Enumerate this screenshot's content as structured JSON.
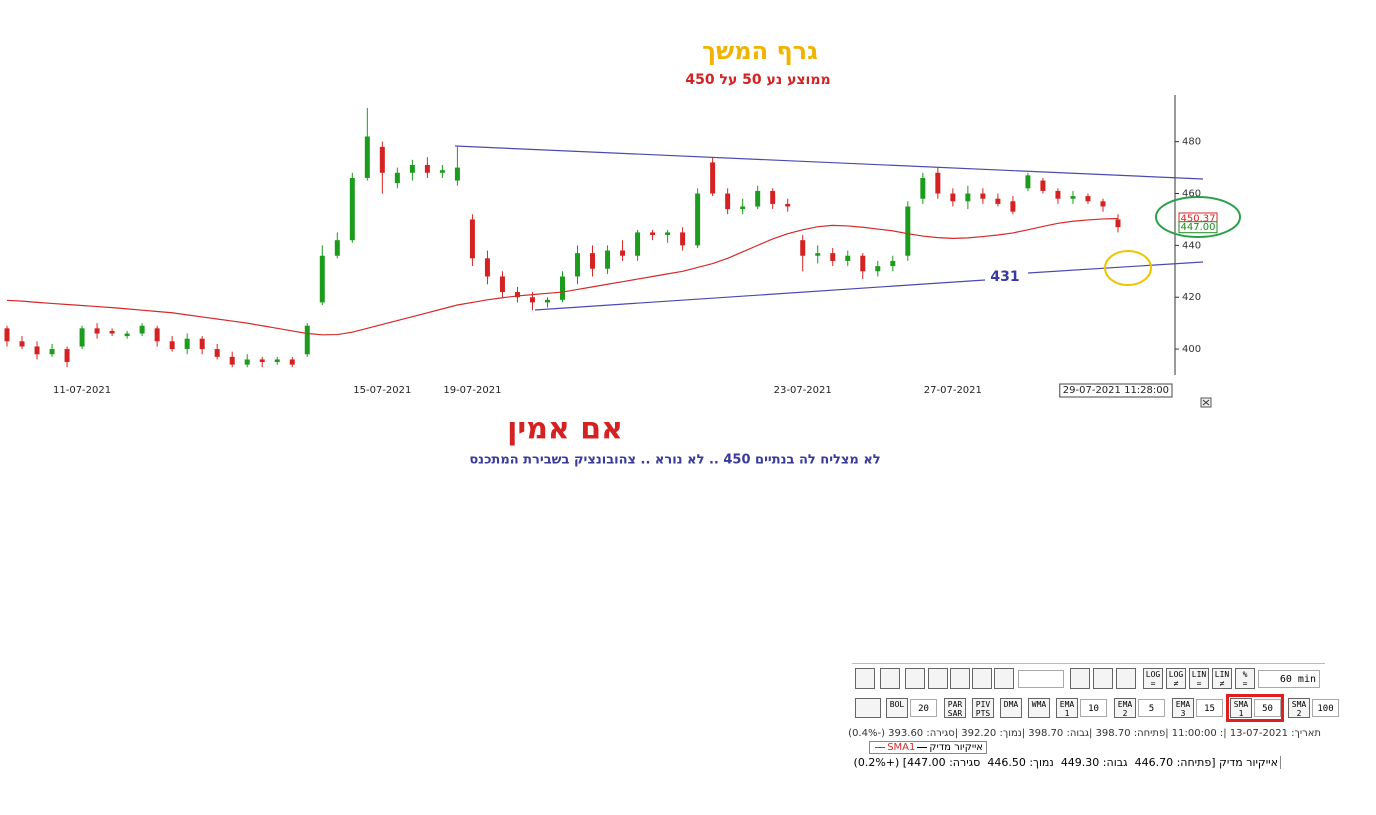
{
  "chart_data": {
    "type": "candlestick",
    "title": "גרף המשך",
    "subtitle": "ממוצע נע 50  על  450",
    "instrument": "אייקיור מדיק",
    "categories": [
      null,
      null,
      null,
      null,
      null,
      "11-07-2021",
      null,
      null,
      null,
      null,
      null,
      null,
      null,
      null,
      null,
      null,
      null,
      null,
      null,
      null,
      null,
      null,
      null,
      null,
      null,
      "15-07-2021",
      null,
      null,
      null,
      null,
      null,
      "19-07-2021",
      null,
      null,
      null,
      null,
      null,
      null,
      null,
      null,
      null,
      null,
      null,
      null,
      null,
      null,
      null,
      null,
      null,
      null,
      null,
      null,
      null,
      "23-07-2021",
      null,
      null,
      null,
      null,
      null,
      null,
      null,
      null,
      null,
      "27-07-2021",
      null,
      null,
      null,
      null,
      null,
      null,
      null,
      null,
      null,
      null,
      "29-07-2021 11:28:00"
    ],
    "open": [
      408,
      403,
      401,
      398,
      400,
      401,
      408,
      407,
      405,
      406,
      408,
      403,
      400,
      404,
      400,
      397,
      394,
      396,
      395,
      396,
      398,
      418,
      436,
      442,
      466,
      478,
      464,
      468,
      471,
      468,
      465,
      450,
      435,
      428,
      422,
      420,
      418,
      419,
      428,
      437,
      431,
      438,
      436,
      445,
      444,
      445,
      440,
      472,
      460,
      454,
      455,
      461,
      456,
      442,
      436,
      437,
      434,
      436,
      430,
      432,
      436,
      458,
      468,
      460,
      457,
      460,
      458,
      457,
      462,
      465,
      461,
      458,
      459,
      457,
      450
    ],
    "high": [
      409,
      405,
      403,
      402,
      401,
      409,
      410,
      408,
      407,
      410,
      409,
      405,
      406,
      405,
      402,
      399,
      398,
      397,
      397,
      397,
      410,
      440,
      445,
      468,
      493,
      480,
      470,
      473,
      474,
      471,
      478,
      452,
      438,
      430,
      424,
      422,
      420,
      430,
      440,
      440,
      440,
      442,
      446,
      446,
      446,
      447,
      462,
      474,
      462,
      458,
      463,
      462,
      458,
      444,
      440,
      439,
      438,
      437,
      434,
      436,
      457,
      468,
      470,
      462,
      463,
      462,
      460,
      459,
      468,
      466,
      462,
      461,
      460,
      458,
      452
    ],
    "low": [
      401,
      400,
      396,
      397,
      393,
      400,
      404,
      405,
      404,
      405,
      401,
      399,
      398,
      398,
      396,
      393,
      393,
      393,
      394,
      393,
      397,
      417,
      435,
      441,
      465,
      460,
      462,
      465,
      466,
      466,
      463,
      432,
      425,
      420,
      418,
      415,
      416,
      418,
      425,
      428,
      429,
      434,
      434,
      442,
      441,
      438,
      439,
      459,
      452,
      452,
      454,
      454,
      453,
      430,
      433,
      432,
      432,
      427,
      428,
      430,
      434,
      456,
      458,
      455,
      454,
      456,
      455,
      452,
      461,
      460,
      456,
      456,
      456,
      453,
      445
    ],
    "close": [
      403,
      401,
      398,
      400,
      395,
      408,
      406,
      406,
      406,
      409,
      403,
      400,
      404,
      400,
      397,
      394,
      396,
      395,
      396,
      394,
      409,
      436,
      442,
      466,
      482,
      468,
      468,
      471,
      468,
      469,
      470,
      435,
      428,
      422,
      420,
      418,
      419,
      428,
      437,
      431,
      438,
      436,
      445,
      444,
      445,
      440,
      460,
      460,
      454,
      455,
      461,
      456,
      455,
      436,
      437,
      434,
      436,
      430,
      432,
      434,
      455,
      466,
      460,
      457,
      460,
      458,
      456,
      453,
      467,
      461,
      458,
      459,
      457,
      455,
      447
    ],
    "up_color": "#1c9c1c",
    "down_color": "#d42222",
    "sma": {
      "name": "SMA1",
      "color": "#d42a2a",
      "values": [
        418.8,
        418.5,
        418,
        417.6,
        417.2,
        416.8,
        416.4,
        416,
        415.5,
        415,
        414.5,
        414,
        413.2,
        412.4,
        411.6,
        410.8,
        410,
        409,
        408,
        407,
        406,
        405.5,
        405.6,
        406.5,
        408,
        409.5,
        411,
        412.5,
        414,
        415.5,
        417,
        418,
        419,
        419.8,
        420.5,
        421,
        421.5,
        422,
        423,
        424,
        425,
        426,
        427,
        428,
        429,
        430,
        431.5,
        433,
        435,
        437.5,
        440,
        442.5,
        444.5,
        446,
        447.2,
        447.7,
        447.5,
        447,
        446.3,
        445.6,
        444.5,
        443.6,
        443,
        442.7,
        442.9,
        443.4,
        444,
        444.8,
        446,
        447.3,
        448.5,
        449.3,
        449.8,
        450.2,
        450.37
      ]
    },
    "ylim": [
      390,
      498
    ],
    "yticks": [
      400,
      420,
      440,
      460,
      480
    ],
    "price_tags": [
      {
        "value": 450.37,
        "color": "#d42a2a"
      },
      {
        "value": 447,
        "label": "447.00",
        "color": "#1c8a1c"
      }
    ],
    "support_label": "431"
  },
  "notes": {
    "headline": "אם אמין",
    "comment": "לא מצליח לה בנתיים  450  ..  לא נורא  ..  צהובונציק בשבירת המתכנס"
  },
  "toolbar": {
    "row1": [
      "LOG =",
      "LOG ≠",
      "LIN =",
      "LIN ≠",
      "% ="
    ],
    "interval": "60 min",
    "row2": [
      [
        "BOL",
        "20"
      ],
      [
        "PAR SAR"
      ],
      [
        "PIV PTS"
      ],
      [
        "DMA"
      ],
      [
        "WMA"
      ],
      [
        "EMA 1",
        "10"
      ],
      [
        "EMA 2",
        "5"
      ],
      [
        "EMA 3",
        "15"
      ],
      [
        "SMA 1",
        "50"
      ],
      [
        "SMA 2",
        "100"
      ]
    ],
    "info": "תאריך: 13-07-2021 |: 11:00:00 |פתיחה: 398.70 |גבוה: 398.70 |נמוך: 392.20 |סגירה: 393.60 (-0.4%)",
    "quote": "אייקיור מדיק [פתיחה: 446.70  גבוה: 449.30  נמוך: 446.50  סגירה: 447.00] (+0.2%)"
  }
}
